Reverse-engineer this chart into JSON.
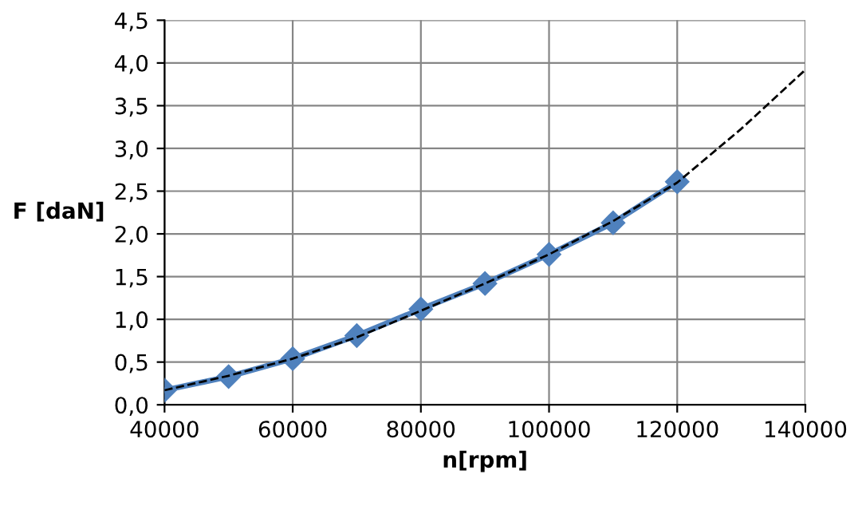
{
  "chart_data": {
    "type": "line",
    "xlabel": "n[rpm]",
    "ylabel": "F [daN]",
    "series": [
      {
        "color": "#4f81bd",
        "marker": "diamond",
        "line_style": "solid",
        "x": [
          40000,
          50000,
          60000,
          70000,
          80000,
          90000,
          100000,
          110000,
          120000
        ],
        "values": [
          0.17,
          0.33,
          0.54,
          0.81,
          1.12,
          1.42,
          1.76,
          2.13,
          2.61
        ]
      },
      {
        "color": "#000000",
        "marker": "none",
        "line_style": "dashed",
        "x": [
          40000,
          50000,
          60000,
          70000,
          80000,
          90000,
          100000,
          110000,
          120000,
          130000,
          140000
        ],
        "values": [
          0.17,
          0.34,
          0.54,
          0.79,
          1.1,
          1.42,
          1.76,
          2.15,
          2.6,
          3.23,
          3.92
        ]
      }
    ],
    "xlim": [
      40000,
      140000
    ],
    "xticks": [
      40000,
      60000,
      80000,
      100000,
      120000,
      140000
    ],
    "ylim": [
      0,
      4.5
    ],
    "yticks": [
      {
        "value": 0,
        "label": "0,0"
      },
      {
        "value": 0.5,
        "label": "0,5"
      },
      {
        "value": 1,
        "label": "1,0"
      },
      {
        "value": 1.5,
        "label": "1,5"
      },
      {
        "value": 2,
        "label": "2,0"
      },
      {
        "value": 2.5,
        "label": "2,5"
      },
      {
        "value": 3,
        "label": "3,0"
      },
      {
        "value": 3.5,
        "label": "3,5"
      },
      {
        "value": 4,
        "label": "4,0"
      },
      {
        "value": 4.5,
        "label": "4,5"
      }
    ],
    "grid": true
  }
}
